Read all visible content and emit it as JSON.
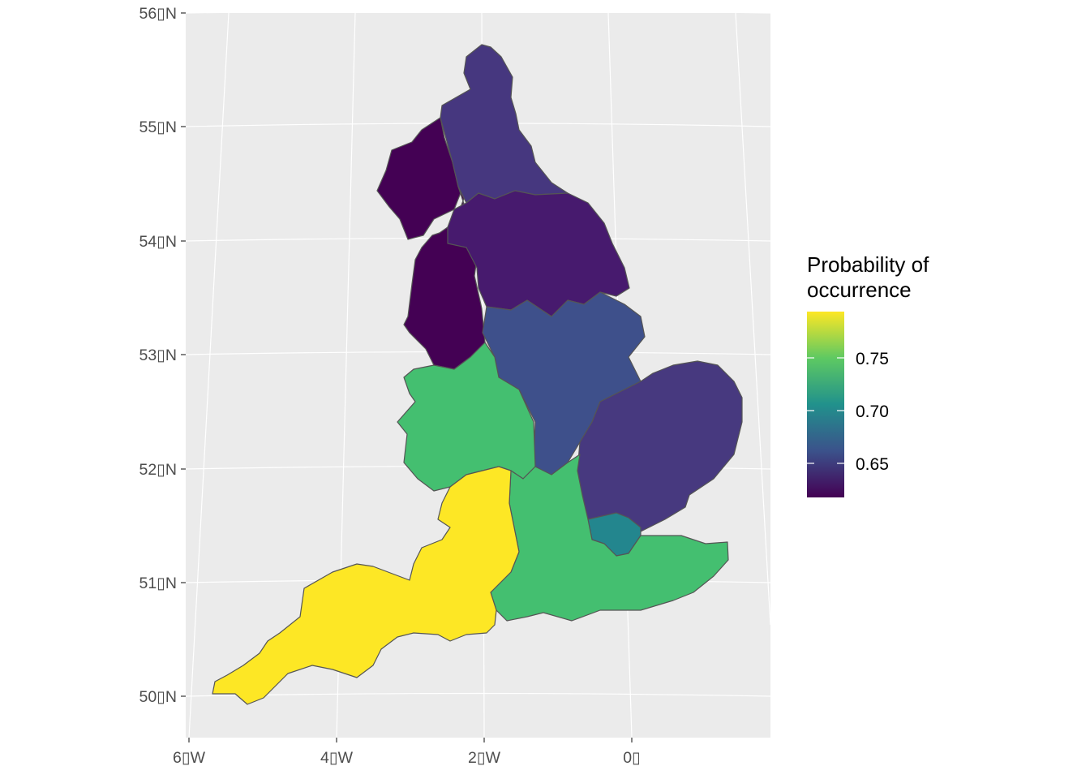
{
  "map": {
    "y_axis": {
      "ticks": [
        "56▯N",
        "55▯N",
        "54▯N",
        "53▯N",
        "52▯N",
        "51▯N",
        "50▯N"
      ]
    },
    "x_axis": {
      "ticks": [
        "6▯W",
        "4▯W",
        "2▯W",
        "0▯"
      ]
    },
    "panel_background": "#ebebeb",
    "gridline_color": "#ffffff",
    "border_color": "#555555",
    "regions": [
      {
        "id": "north-west",
        "value": 0.615,
        "fill": "#440154"
      },
      {
        "id": "north-east",
        "value": 0.648,
        "fill": "#46377f"
      },
      {
        "id": "yorkshire",
        "value": 0.627,
        "fill": "#471a6e"
      },
      {
        "id": "east-midlands",
        "value": 0.672,
        "fill": "#3e508b"
      },
      {
        "id": "east-of-england",
        "value": 0.65,
        "fill": "#47397f"
      },
      {
        "id": "london",
        "value": 0.708,
        "fill": "#23868e"
      },
      {
        "id": "west-midlands",
        "value": 0.765,
        "fill": "#44bf70"
      },
      {
        "id": "south-east",
        "value": 0.765,
        "fill": "#44bf70"
      },
      {
        "id": "south-west",
        "value": 0.795,
        "fill": "#fde725"
      }
    ]
  },
  "legend": {
    "title_line1": "Probability of",
    "title_line2": "occurrence",
    "labels": [
      "0.75",
      "0.70",
      "0.65"
    ],
    "gradient": [
      "#440154",
      "#3b528b",
      "#21918c",
      "#5ec962",
      "#fde725"
    ]
  }
}
